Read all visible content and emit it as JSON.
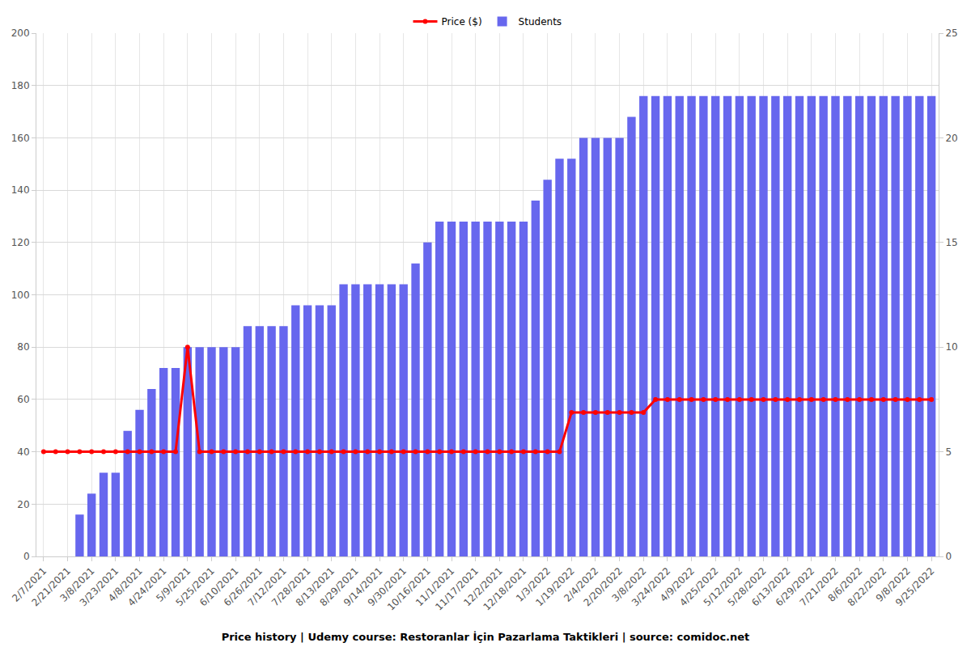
{
  "chart_data": {
    "type": "bar",
    "title": "Price history | Udemy course: Restoranlar İçin Pazarlama Taktikleri | source: comidoc.net",
    "categories": [
      "2/7/2021",
      null,
      "2/21/2021",
      null,
      "3/8/2021",
      null,
      "3/23/2021",
      null,
      "4/8/2021",
      null,
      "4/24/2021",
      null,
      "5/9/2021",
      null,
      "5/25/2021",
      null,
      "6/10/2021",
      null,
      "6/26/2021",
      null,
      "7/12/2021",
      null,
      "7/28/2021",
      null,
      "8/13/2021",
      null,
      "8/29/2021",
      null,
      "9/14/2021",
      null,
      "9/30/2021",
      null,
      "10/16/2021",
      null,
      "11/1/2021",
      null,
      "11/17/2021",
      null,
      "12/2/2021",
      null,
      "12/18/2021",
      null,
      "1/3/2022",
      null,
      "1/19/2022",
      null,
      "2/4/2022",
      null,
      "2/20/2022",
      null,
      "3/8/2022",
      null,
      "3/24/2022",
      null,
      "4/9/2022",
      null,
      "4/25/2022",
      null,
      "5/12/2022",
      null,
      "5/28/2022",
      null,
      "6/13/2022",
      null,
      "6/29/2022",
      null,
      "7/21/2022",
      null,
      "8/6/2022",
      null,
      "8/22/2022",
      null,
      "9/8/2022",
      null,
      "9/25/2022"
    ],
    "series": [
      {
        "name": "Price ($)",
        "type": "line",
        "color": "#ff0000",
        "marker": "circle",
        "values": [
          40,
          40,
          40,
          40,
          40,
          40,
          40,
          40,
          40,
          40,
          40,
          40,
          80,
          40,
          40,
          40,
          40,
          40,
          40,
          40,
          40,
          40,
          40,
          40,
          40,
          40,
          40,
          40,
          40,
          40,
          40,
          40,
          40,
          40,
          40,
          40,
          40,
          40,
          40,
          40,
          40,
          40,
          40,
          40,
          55,
          55,
          55,
          55,
          55,
          55,
          55,
          60,
          60,
          60,
          60,
          60,
          60,
          60,
          60,
          60,
          60,
          60,
          60,
          60,
          60,
          60,
          60,
          60,
          60,
          60,
          60,
          60,
          60,
          60,
          60
        ]
      },
      {
        "name": "Students",
        "type": "bar",
        "color": "#6767ee",
        "axis": "y2",
        "values": [
          0,
          0,
          0,
          2,
          3,
          4,
          4,
          6,
          7,
          8,
          9,
          9,
          10,
          10,
          10,
          10,
          10,
          11,
          11,
          11,
          11,
          12,
          12,
          12,
          12,
          13,
          13,
          13,
          13,
          13,
          13,
          14,
          15,
          16,
          16,
          16,
          16,
          16,
          16,
          16,
          16,
          17,
          18,
          19,
          19,
          20,
          20,
          20,
          20,
          21,
          22,
          22,
          22,
          22,
          22,
          22,
          22,
          22,
          22,
          22,
          22,
          22,
          22,
          22,
          22,
          22,
          22,
          22,
          22,
          22,
          22,
          22,
          22,
          22,
          22
        ]
      }
    ],
    "ylim": [
      0,
      200
    ],
    "yticks": [
      0,
      20,
      40,
      60,
      80,
      100,
      120,
      140,
      160,
      180,
      200
    ],
    "y2lim": [
      0,
      25
    ],
    "y2ticks": [
      0,
      5,
      10,
      15,
      20,
      25
    ],
    "grid": true,
    "legend": "top"
  }
}
